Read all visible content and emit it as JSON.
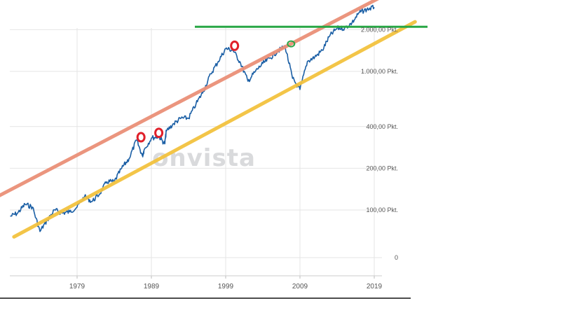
{
  "watermark": "onvista",
  "chart_data": {
    "type": "line",
    "title": "",
    "xlabel": "",
    "ylabel": "",
    "log_scale_y": true,
    "grid": true,
    "x_ticks": [
      "1979",
      "1989",
      "1999",
      "2009",
      "2019"
    ],
    "y_ticks": [
      {
        "label": "0",
        "value": 0
      },
      {
        "label": "100,00 Pkt.",
        "value": 100
      },
      {
        "label": "200,00 Pkt.",
        "value": 200
      },
      {
        "label": "400,00 Pkt.",
        "value": 400
      },
      {
        "label": "1.000,00 Pkt.",
        "value": 1000
      },
      {
        "label": "2.000,00 Pkt.",
        "value": 2000
      }
    ],
    "series": [
      {
        "color": "#1b5fa5",
        "points": [
          [
            1970.0,
            90
          ],
          [
            1971.0,
            95
          ],
          [
            1972.0,
            110
          ],
          [
            1973.0,
            105
          ],
          [
            1974.0,
            70
          ],
          [
            1975.0,
            85
          ],
          [
            1976.0,
            100
          ],
          [
            1977.0,
            95
          ],
          [
            1978.0,
            97
          ],
          [
            1979.0,
            105
          ],
          [
            1980.0,
            125
          ],
          [
            1981.0,
            115
          ],
          [
            1982.0,
            130
          ],
          [
            1983.0,
            160
          ],
          [
            1984.0,
            160
          ],
          [
            1985.0,
            200
          ],
          [
            1986.0,
            235
          ],
          [
            1987.0,
            320
          ],
          [
            1987.8,
            245
          ],
          [
            1988.0,
            270
          ],
          [
            1989.0,
            330
          ],
          [
            1990.0,
            340
          ],
          [
            1990.8,
            300
          ],
          [
            1991.0,
            370
          ],
          [
            1992.0,
            420
          ],
          [
            1993.0,
            460
          ],
          [
            1994.0,
            460
          ],
          [
            1995.0,
            580
          ],
          [
            1996.0,
            720
          ],
          [
            1997.0,
            960
          ],
          [
            1998.0,
            1180
          ],
          [
            1999.0,
            1460
          ],
          [
            2000.0,
            1420
          ],
          [
            2001.0,
            1150
          ],
          [
            2002.0,
            850
          ],
          [
            2003.0,
            1000
          ],
          [
            2004.0,
            1140
          ],
          [
            2005.0,
            1250
          ],
          [
            2006.0,
            1400
          ],
          [
            2007.0,
            1520
          ],
          [
            2008.0,
            890
          ],
          [
            2009.0,
            740
          ],
          [
            2010.0,
            1180
          ],
          [
            2011.0,
            1270
          ],
          [
            2012.0,
            1420
          ],
          [
            2013.0,
            1800
          ],
          [
            2014.0,
            2050
          ],
          [
            2015.0,
            2050
          ],
          [
            2016.0,
            2240
          ],
          [
            2017.0,
            2660
          ],
          [
            2018.0,
            2800
          ],
          [
            2019.0,
            2900
          ]
        ]
      }
    ],
    "annotations": {
      "trend_lines": [
        {
          "color": "#ea9078",
          "from": [
            1966.0,
            108
          ],
          "to": [
            2019.5,
            3350
          ]
        },
        {
          "color": "#f3c23f",
          "from": [
            1970.5,
            64
          ],
          "to": [
            2024.5,
            2280
          ]
        }
      ],
      "horizontal_line": {
        "color": "#28a745",
        "value": 2100
      },
      "red_markers": [
        [
          1987.6,
          335
        ],
        [
          1990.0,
          360
        ],
        [
          2000.2,
          1530
        ]
      ],
      "green_markers": [
        [
          2007.8,
          1580
        ]
      ]
    }
  }
}
